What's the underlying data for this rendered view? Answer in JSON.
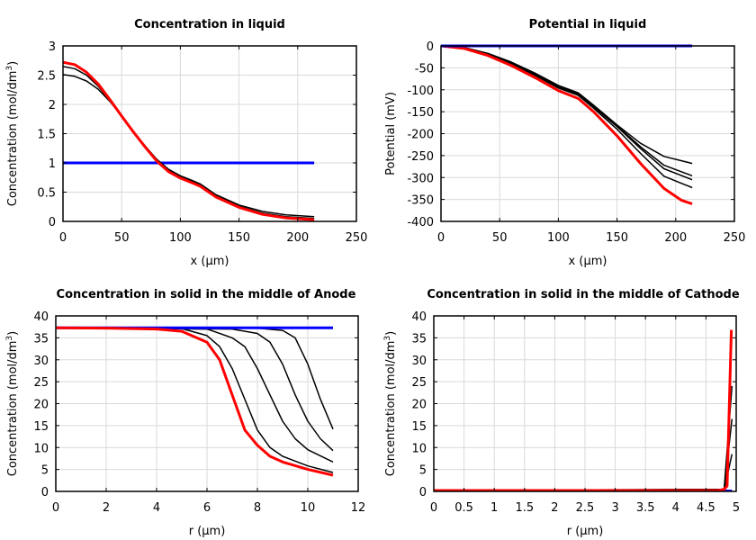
{
  "chart_data": [
    {
      "type": "line",
      "title": "Concentration in liquid",
      "xlabel": "x (µm)",
      "ylabel": {
        "text": "Concentration (mol/dm",
        "sup": "3",
        "close": ")"
      },
      "xlim": [
        0,
        250
      ],
      "ylim": [
        0,
        3
      ],
      "xticks": [
        0,
        50,
        100,
        150,
        200,
        250
      ],
      "yticks": [
        0,
        0.5,
        1,
        1.5,
        2,
        2.5,
        3
      ],
      "grid": true,
      "series": [
        {
          "color": "#0000ff",
          "width": 3,
          "points": [
            [
              0,
              1
            ],
            [
              214,
              1
            ]
          ]
        },
        {
          "color": "#000000",
          "width": 1.5,
          "points": [
            [
              0,
              2.51
            ],
            [
              10,
              2.48
            ],
            [
              20,
              2.4
            ],
            [
              30,
              2.26
            ],
            [
              40,
              2.05
            ],
            [
              50,
              1.8
            ],
            [
              60,
              1.54
            ],
            [
              70,
              1.29
            ],
            [
              80,
              1.06
            ],
            [
              90,
              0.89
            ],
            [
              100,
              0.78
            ],
            [
              110,
              0.7
            ],
            [
              117,
              0.64
            ],
            [
              130,
              0.46
            ],
            [
              150,
              0.28
            ],
            [
              170,
              0.17
            ],
            [
              190,
              0.11
            ],
            [
              214,
              0.08
            ]
          ]
        },
        {
          "color": "#000000",
          "width": 1.5,
          "points": [
            [
              0,
              2.65
            ],
            [
              10,
              2.61
            ],
            [
              20,
              2.5
            ],
            [
              30,
              2.31
            ],
            [
              40,
              2.06
            ],
            [
              50,
              1.8
            ],
            [
              60,
              1.54
            ],
            [
              70,
              1.28
            ],
            [
              80,
              1.05
            ],
            [
              90,
              0.87
            ],
            [
              100,
              0.76
            ],
            [
              110,
              0.68
            ],
            [
              117,
              0.62
            ],
            [
              130,
              0.44
            ],
            [
              150,
              0.26
            ],
            [
              170,
              0.14
            ],
            [
              190,
              0.08
            ],
            [
              214,
              0.05
            ]
          ]
        },
        {
          "color": "#ff0000",
          "width": 3,
          "points": [
            [
              0,
              2.72
            ],
            [
              10,
              2.68
            ],
            [
              20,
              2.55
            ],
            [
              30,
              2.35
            ],
            [
              40,
              2.08
            ],
            [
              50,
              1.8
            ],
            [
              60,
              1.53
            ],
            [
              70,
              1.27
            ],
            [
              80,
              1.03
            ],
            [
              90,
              0.85
            ],
            [
              100,
              0.74
            ],
            [
              110,
              0.66
            ],
            [
              117,
              0.6
            ],
            [
              130,
              0.42
            ],
            [
              150,
              0.24
            ],
            [
              170,
              0.12
            ],
            [
              190,
              0.06
            ],
            [
              214,
              0.03
            ]
          ]
        }
      ]
    },
    {
      "type": "line",
      "title": "Potential in liquid",
      "xlabel": "x (µm)",
      "ylabel": {
        "text": "Potential (mV)"
      },
      "xlim": [
        0,
        250
      ],
      "ylim": [
        -400,
        0
      ],
      "xticks": [
        0,
        50,
        100,
        150,
        200,
        250
      ],
      "yticks": [
        -400,
        -350,
        -300,
        -250,
        -200,
        -150,
        -100,
        -50,
        0
      ],
      "grid": true,
      "series": [
        {
          "color": "#000000",
          "width": 1.5,
          "points": [
            [
              0,
              0
            ],
            [
              20,
              -4
            ],
            [
              40,
              -17
            ],
            [
              60,
              -37
            ],
            [
              80,
              -62
            ],
            [
              100,
              -90
            ],
            [
              117,
              -107
            ],
            [
              130,
              -135
            ],
            [
              150,
              -180
            ],
            [
              170,
              -222
            ],
            [
              190,
              -252
            ],
            [
              214,
              -268
            ]
          ]
        },
        {
          "color": "#000000",
          "width": 1.5,
          "points": [
            [
              0,
              0
            ],
            [
              20,
              -5
            ],
            [
              40,
              -18
            ],
            [
              60,
              -39
            ],
            [
              80,
              -64
            ],
            [
              100,
              -92
            ],
            [
              117,
              -109
            ],
            [
              130,
              -137
            ],
            [
              150,
              -182
            ],
            [
              170,
              -230
            ],
            [
              190,
              -272
            ],
            [
              214,
              -296
            ]
          ]
        },
        {
          "color": "#000000",
          "width": 1.5,
          "points": [
            [
              0,
              0
            ],
            [
              20,
              -5
            ],
            [
              40,
              -19
            ],
            [
              60,
              -40
            ],
            [
              80,
              -66
            ],
            [
              100,
              -94
            ],
            [
              117,
              -111
            ],
            [
              130,
              -139
            ],
            [
              150,
              -184
            ],
            [
              170,
              -234
            ],
            [
              190,
              -280
            ],
            [
              214,
              -305
            ]
          ]
        },
        {
          "color": "#000000",
          "width": 1.5,
          "points": [
            [
              0,
              0
            ],
            [
              20,
              -5
            ],
            [
              40,
              -19
            ],
            [
              60,
              -41
            ],
            [
              80,
              -67
            ],
            [
              100,
              -96
            ],
            [
              117,
              -113
            ],
            [
              130,
              -142
            ],
            [
              150,
              -190
            ],
            [
              170,
              -245
            ],
            [
              190,
              -297
            ],
            [
              214,
              -323
            ]
          ]
        },
        {
          "color": "#ff0000",
          "width": 3,
          "points": [
            [
              0,
              0
            ],
            [
              20,
              -6
            ],
            [
              40,
              -22
            ],
            [
              60,
              -45
            ],
            [
              80,
              -72
            ],
            [
              100,
              -102
            ],
            [
              117,
              -120
            ],
            [
              130,
              -150
            ],
            [
              150,
              -205
            ],
            [
              170,
              -268
            ],
            [
              190,
              -325
            ],
            [
              205,
              -352
            ],
            [
              214,
              -360
            ]
          ]
        },
        {
          "color": "#0000ff",
          "width": 3,
          "points": [
            [
              0,
              0
            ],
            [
              214,
              0
            ]
          ]
        }
      ]
    },
    {
      "type": "line",
      "title": "Concentration in solid in the middle of Anode",
      "xlabel": "r (µm)",
      "ylabel": {
        "text": "Concentration (mol/dm",
        "sup": "3",
        "close": ")"
      },
      "xlim": [
        0,
        12
      ],
      "ylim": [
        0,
        40
      ],
      "xticks": [
        0,
        2,
        4,
        6,
        8,
        10,
        12
      ],
      "yticks": [
        0,
        5,
        10,
        15,
        20,
        25,
        30,
        35,
        40
      ],
      "grid": true,
      "series": [
        {
          "color": "#000000",
          "width": 1.5,
          "points": [
            [
              0,
              37.3
            ],
            [
              5,
              37.1
            ],
            [
              6,
              35.5
            ],
            [
              6.5,
              33
            ],
            [
              7,
              28
            ],
            [
              7.5,
              21
            ],
            [
              8,
              14
            ],
            [
              8.5,
              10
            ],
            [
              9,
              8
            ],
            [
              10,
              5.8
            ],
            [
              11,
              4.3
            ]
          ]
        },
        {
          "color": "#000000",
          "width": 1.5,
          "points": [
            [
              0,
              37.3
            ],
            [
              6,
              37
            ],
            [
              7,
              35
            ],
            [
              7.5,
              33
            ],
            [
              8,
              28
            ],
            [
              8.5,
              22
            ],
            [
              9,
              16
            ],
            [
              9.5,
              12
            ],
            [
              10,
              9.5
            ],
            [
              11,
              6.7
            ]
          ]
        },
        {
          "color": "#000000",
          "width": 1.5,
          "points": [
            [
              0,
              37.3
            ],
            [
              7,
              37
            ],
            [
              8,
              36
            ],
            [
              8.5,
              34
            ],
            [
              9,
              29
            ],
            [
              9.5,
              22
            ],
            [
              10,
              16
            ],
            [
              10.5,
              12
            ],
            [
              11,
              9.3
            ]
          ]
        },
        {
          "color": "#000000",
          "width": 1.5,
          "points": [
            [
              0,
              37.3
            ],
            [
              8,
              37.2
            ],
            [
              9,
              36.7
            ],
            [
              9.5,
              35
            ],
            [
              10,
              29
            ],
            [
              10.5,
              21
            ],
            [
              11,
              14.2
            ]
          ]
        },
        {
          "color": "#0000ff",
          "width": 3,
          "points": [
            [
              0,
              37.3
            ],
            [
              11,
              37.3
            ]
          ]
        },
        {
          "color": "#ff0000",
          "width": 3,
          "points": [
            [
              0,
              37.3
            ],
            [
              2,
              37.2
            ],
            [
              4,
              37
            ],
            [
              5,
              36.5
            ],
            [
              6,
              34
            ],
            [
              6.5,
              30
            ],
            [
              7,
              22
            ],
            [
              7.5,
              14
            ],
            [
              8,
              10.5
            ],
            [
              8.5,
              8
            ],
            [
              9,
              6.7
            ],
            [
              10,
              5
            ],
            [
              11,
              3.7
            ]
          ]
        }
      ]
    },
    {
      "type": "line",
      "title": "Concentration in solid in the middle of Cathode",
      "xlabel": "r (µm)",
      "ylabel": {
        "text": "Concentration (mol/dm",
        "sup": "3",
        "close": ")"
      },
      "xlim": [
        0,
        5
      ],
      "ylim": [
        0,
        40
      ],
      "xticks": [
        0,
        0.5,
        1,
        1.5,
        2,
        2.5,
        3,
        3.5,
        4,
        4.5,
        5
      ],
      "yticks": [
        0,
        5,
        10,
        15,
        20,
        25,
        30,
        35,
        40
      ],
      "grid": true,
      "series": [
        {
          "color": "#0000ff",
          "width": 3,
          "points": [
            [
              0,
              0.1
            ],
            [
              4.93,
              0.1
            ]
          ]
        },
        {
          "color": "#000000",
          "width": 1.5,
          "points": [
            [
              0,
              0.2
            ],
            [
              4.8,
              0.3
            ],
            [
              4.93,
              8.5
            ]
          ]
        },
        {
          "color": "#000000",
          "width": 1.5,
          "points": [
            [
              0,
              0.2
            ],
            [
              4.8,
              0.4
            ],
            [
              4.93,
              16.5
            ]
          ]
        },
        {
          "color": "#000000",
          "width": 1.5,
          "points": [
            [
              0,
              0.2
            ],
            [
              4.8,
              0.5
            ],
            [
              4.93,
              24
            ]
          ]
        },
        {
          "color": "#ff0000",
          "width": 3,
          "points": [
            [
              0,
              0.2
            ],
            [
              4.7,
              0.2
            ],
            [
              4.8,
              0.5
            ],
            [
              4.85,
              1.2
            ],
            [
              4.92,
              36.8
            ]
          ]
        }
      ]
    }
  ]
}
